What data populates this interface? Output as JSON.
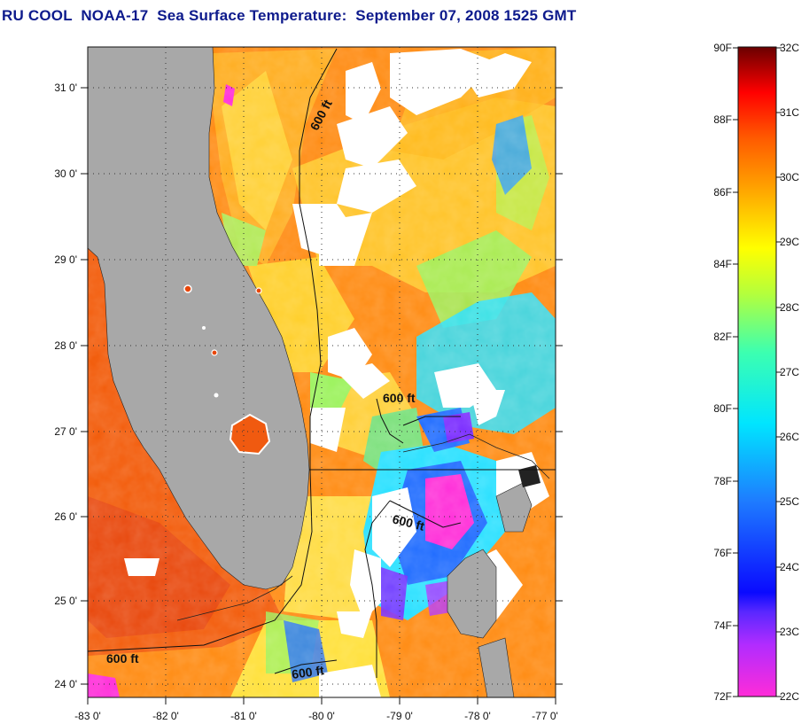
{
  "title": "RU COOL  NOAA-17  Sea Surface Temperature:  September 07, 2008 1525 GMT",
  "map": {
    "lon_ticks": [
      "-83 0'",
      "-82 0'",
      "-81 0'",
      "-80 0'",
      "-79 0'",
      "-78 0'",
      "-77 0'"
    ],
    "lat_ticks": [
      "31 0'",
      "30 0'",
      "29 0'",
      "28 0'",
      "27 0'",
      "26 0'",
      "25 0'",
      "24 0'"
    ],
    "contour_labels": [
      "600 ft",
      "600 ft",
      "600 ft",
      "600 ft",
      "600 ft"
    ],
    "colors": {
      "land": "#a8a8a8",
      "warm": "#ff6a00",
      "hot": "#e83a00",
      "orange": "#ff9a1a",
      "yellow": "#ffe600",
      "green": "#9af25a",
      "cyan": "#27e0ff",
      "blue": "#1e6bff",
      "violet": "#7a2cff",
      "magenta": "#ff2cd8",
      "cloud": "#ffffff"
    }
  },
  "colorbar": {
    "f_labels": [
      "90F",
      "88F",
      "86F",
      "84F",
      "82F",
      "80F",
      "78F",
      "76F",
      "74F",
      "72F"
    ],
    "c_labels": [
      "32C",
      "31C",
      "30C",
      "29C",
      "28C",
      "27C",
      "26C",
      "25C",
      "24C",
      "23C",
      "22C"
    ]
  }
}
